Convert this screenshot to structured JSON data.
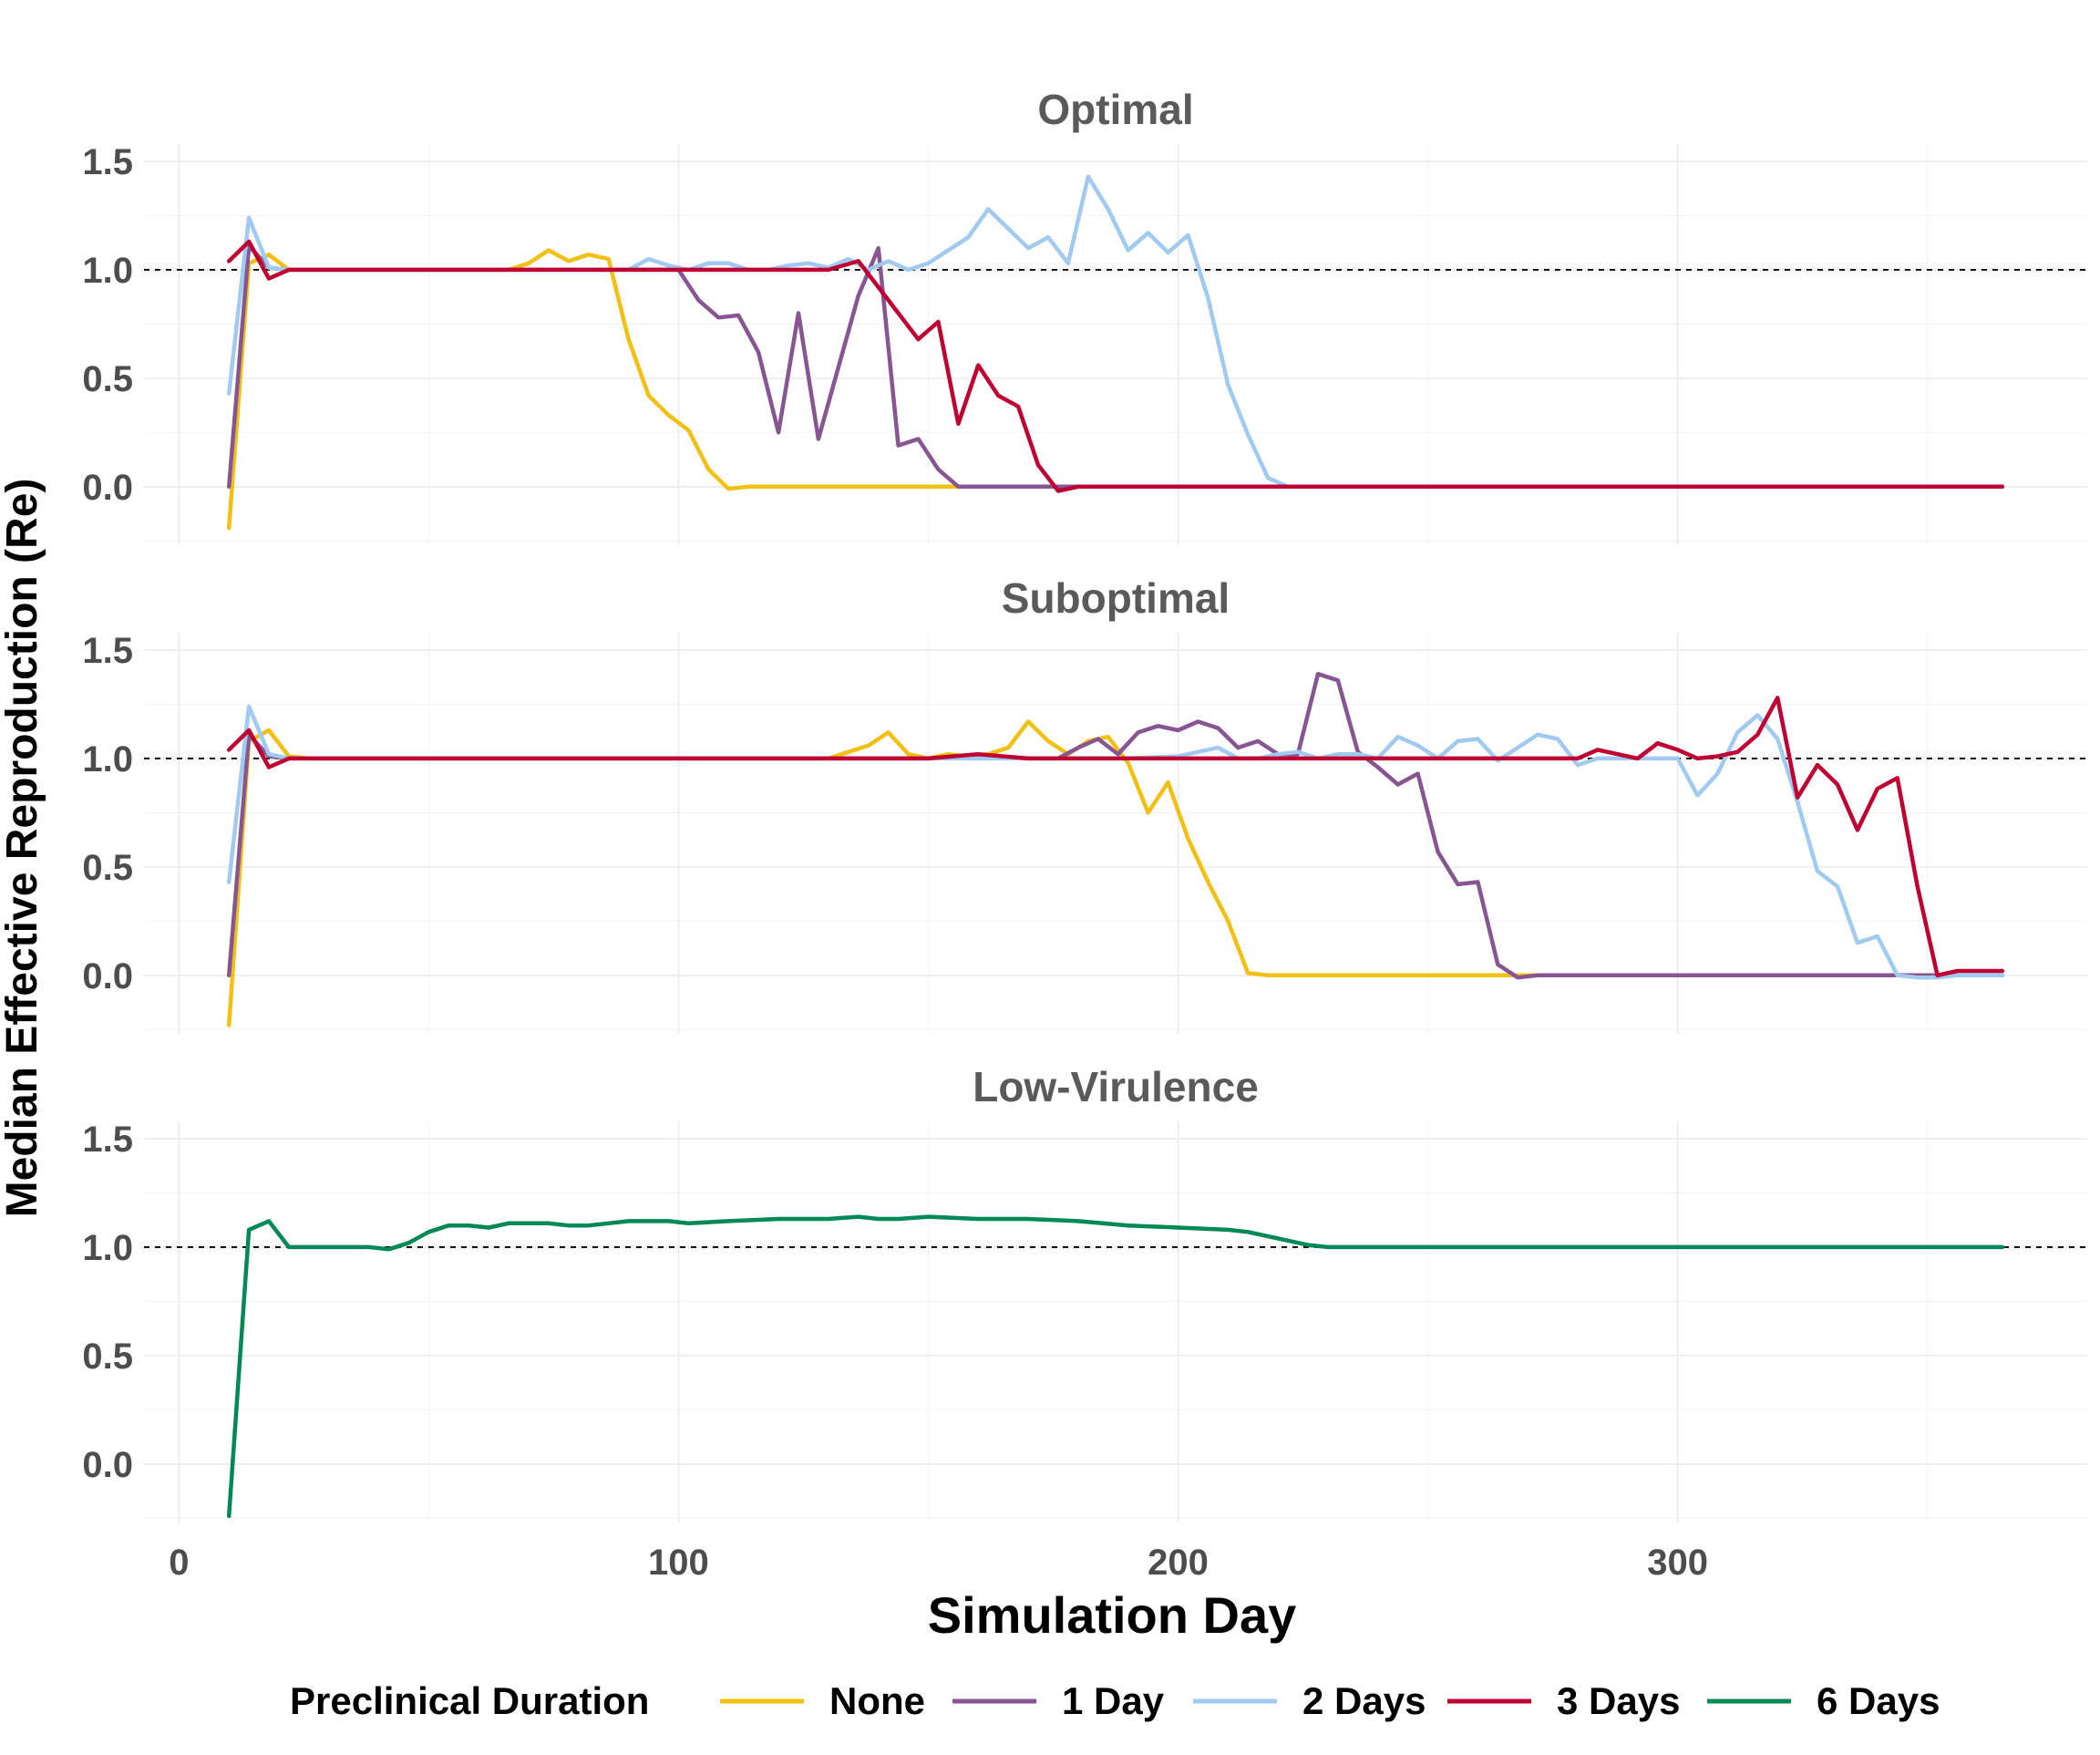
{
  "chart_data": {
    "type": "line",
    "xlabel": "Simulation Day",
    "ylabel": "Median Effective Reproduction (Re)",
    "xlim": [
      -7,
      382
    ],
    "ylim": [
      -0.27,
      1.58
    ],
    "x_ticks": [
      0,
      100,
      200,
      300
    ],
    "y_ticks": [
      0.0,
      0.5,
      1.0,
      1.5
    ],
    "x_tick_labels": [
      "0",
      "100",
      "200",
      "300"
    ],
    "y_tick_labels": [
      "0.0",
      "0.5",
      "1.0",
      "1.5"
    ],
    "reference_line": 1.0,
    "grid": true,
    "legend": {
      "title": "Preclinical Duration",
      "placement": "bottom",
      "entries": [
        {
          "label": "None",
          "color": "#F2C014"
        },
        {
          "label": "1 Day",
          "color": "#875692"
        },
        {
          "label": "2 Days",
          "color": "#A1CAF1"
        },
        {
          "label": "3 Days",
          "color": "#BE0032"
        },
        {
          "label": "6 Days",
          "color": "#008856"
        }
      ]
    },
    "panels": [
      {
        "title": "Optimal",
        "series": [
          {
            "name": "None",
            "color": "#F2C014",
            "x": [
              10,
              14,
              18,
              22,
              26,
              30,
              40,
              50,
              60,
              66,
              70,
              74,
              78,
              82,
              86,
              90,
              94,
              98,
              102,
              106,
              110,
              114,
              118,
              122,
              130,
              140,
              150,
              160,
              166,
              180,
              200,
              250,
              300,
              365
            ],
            "y": [
              -0.19,
              1.03,
              1.07,
              1.0,
              1.0,
              1.0,
              1.0,
              1.0,
              1.0,
              1.0,
              1.03,
              1.09,
              1.04,
              1.07,
              1.05,
              0.68,
              0.42,
              0.33,
              0.26,
              0.08,
              -0.01,
              0.0,
              0.0,
              0.0,
              0.0,
              0.0,
              0.0,
              0.0,
              0.0,
              0.0,
              0.0,
              0.0,
              0.0,
              0.0
            ]
          },
          {
            "name": "1 Day",
            "color": "#875692",
            "x": [
              10,
              14,
              18,
              22,
              26,
              40,
              60,
              80,
              96,
              100,
              104,
              108,
              112,
              116,
              120,
              124,
              128,
              132,
              136,
              140,
              144,
              148,
              152,
              156,
              160,
              164,
              170,
              180,
              200,
              250,
              300,
              365
            ],
            "y": [
              0.0,
              1.11,
              1.01,
              1.0,
              1.0,
              1.0,
              1.0,
              1.0,
              1.0,
              1.0,
              0.86,
              0.78,
              0.79,
              0.62,
              0.25,
              0.8,
              0.22,
              0.55,
              0.88,
              1.1,
              0.19,
              0.22,
              0.08,
              0.0,
              0.0,
              0.0,
              0.0,
              0.0,
              0.0,
              0.0,
              0.0,
              0.0
            ]
          },
          {
            "name": "2 Days",
            "color": "#A1CAF1",
            "x": [
              10,
              14,
              18,
              22,
              26,
              40,
              60,
              80,
              90,
              94,
              98,
              102,
              106,
              110,
              114,
              118,
              122,
              126,
              130,
              134,
              138,
              142,
              146,
              150,
              154,
              158,
              162,
              166,
              170,
              174,
              178,
              182,
              186,
              190,
              194,
              198,
              202,
              206,
              210,
              214,
              218,
              222,
              226,
              230,
              234,
              238,
              250,
              300,
              365
            ],
            "y": [
              0.43,
              1.24,
              1.01,
              1.0,
              1.0,
              1.0,
              1.0,
              1.0,
              1.0,
              1.05,
              1.02,
              1.0,
              1.03,
              1.03,
              1.0,
              1.0,
              1.02,
              1.03,
              1.01,
              1.05,
              1.0,
              1.04,
              1.0,
              1.03,
              1.09,
              1.15,
              1.28,
              1.19,
              1.1,
              1.15,
              1.03,
              1.43,
              1.28,
              1.09,
              1.17,
              1.08,
              1.16,
              0.87,
              0.47,
              0.24,
              0.04,
              0.0,
              0.0,
              0.0,
              0.0,
              0.0,
              0.0,
              0.0,
              0.0
            ]
          },
          {
            "name": "3 Days",
            "color": "#BE0032",
            "x": [
              10,
              14,
              18,
              22,
              26,
              40,
              60,
              80,
              100,
              120,
              130,
              136,
              140,
              144,
              148,
              152,
              156,
              160,
              164,
              168,
              172,
              176,
              180,
              184,
              190,
              200,
              250,
              300,
              365
            ],
            "y": [
              1.04,
              1.13,
              0.96,
              1.0,
              1.0,
              1.0,
              1.0,
              1.0,
              1.0,
              1.0,
              1.0,
              1.04,
              0.92,
              0.8,
              0.68,
              0.76,
              0.29,
              0.56,
              0.42,
              0.37,
              0.1,
              -0.02,
              0.0,
              0.0,
              0.0,
              0.0,
              0.0,
              0.0,
              0.0
            ]
          }
        ]
      },
      {
        "title": "Suboptimal",
        "series": [
          {
            "name": "None",
            "color": "#F2C014",
            "x": [
              10,
              14,
              18,
              22,
              26,
              40,
              60,
              80,
              100,
              120,
              130,
              134,
              138,
              142,
              146,
              150,
              154,
              158,
              162,
              166,
              170,
              174,
              178,
              182,
              186,
              190,
              194,
              198,
              202,
              206,
              210,
              214,
              218,
              222,
              226,
              230,
              250,
              280,
              300,
              365
            ],
            "y": [
              -0.23,
              1.08,
              1.13,
              1.01,
              1.0,
              1.0,
              1.0,
              1.0,
              1.0,
              1.0,
              1.0,
              1.03,
              1.06,
              1.12,
              1.02,
              1.0,
              1.02,
              1.01,
              1.02,
              1.05,
              1.17,
              1.08,
              1.02,
              1.08,
              1.1,
              0.98,
              0.75,
              0.89,
              0.63,
              0.43,
              0.25,
              0.01,
              0.0,
              0.0,
              0.0,
              0.0,
              0.0,
              0.0,
              0.0,
              0.0
            ]
          },
          {
            "name": "1 Day",
            "color": "#875692",
            "x": [
              10,
              14,
              18,
              22,
              26,
              40,
              60,
              80,
              100,
              120,
              140,
              150,
              160,
              170,
              176,
              180,
              184,
              188,
              192,
              196,
              200,
              204,
              208,
              212,
              216,
              220,
              224,
              228,
              232,
              236,
              240,
              244,
              248,
              252,
              256,
              260,
              264,
              268,
              272,
              276,
              280,
              290,
              300,
              365
            ],
            "y": [
              0.0,
              1.11,
              1.01,
              1.0,
              1.0,
              1.0,
              1.0,
              1.0,
              1.0,
              1.0,
              1.0,
              1.0,
              1.01,
              1.0,
              1.0,
              1.05,
              1.09,
              1.02,
              1.12,
              1.15,
              1.13,
              1.17,
              1.14,
              1.05,
              1.08,
              1.02,
              1.02,
              1.39,
              1.36,
              1.03,
              0.96,
              0.88,
              0.93,
              0.57,
              0.42,
              0.43,
              0.05,
              -0.01,
              0.0,
              0.0,
              0.0,
              0.0,
              0.0,
              0.0
            ]
          },
          {
            "name": "2 Days",
            "color": "#A1CAF1",
            "x": [
              10,
              14,
              18,
              22,
              26,
              40,
              60,
              80,
              100,
              120,
              140,
              150,
              160,
              170,
              180,
              190,
              200,
              204,
              208,
              212,
              216,
              220,
              224,
              228,
              232,
              236,
              240,
              244,
              248,
              252,
              256,
              260,
              264,
              268,
              272,
              276,
              280,
              284,
              288,
              292,
              296,
              300,
              304,
              308,
              312,
              316,
              320,
              324,
              328,
              332,
              336,
              340,
              344,
              348,
              352,
              356,
              360,
              365
            ],
            "y": [
              0.43,
              1.24,
              1.02,
              1.0,
              1.0,
              1.0,
              1.0,
              1.0,
              1.0,
              1.0,
              1.0,
              1.0,
              1.0,
              1.0,
              1.0,
              1.0,
              1.01,
              1.03,
              1.05,
              1.0,
              1.0,
              1.02,
              1.03,
              1.0,
              1.02,
              1.02,
              1.0,
              1.1,
              1.06,
              1.0,
              1.08,
              1.09,
              0.99,
              1.05,
              1.11,
              1.09,
              0.97,
              1.0,
              1.0,
              1.0,
              1.0,
              1.0,
              0.83,
              0.93,
              1.12,
              1.2,
              1.09,
              0.8,
              0.48,
              0.41,
              0.15,
              0.18,
              0.0,
              -0.01,
              -0.01,
              0.0,
              0.0,
              0.0
            ]
          },
          {
            "name": "3 Days",
            "color": "#BE0032",
            "x": [
              10,
              14,
              18,
              22,
              26,
              40,
              60,
              80,
              100,
              120,
              140,
              150,
              160,
              170,
              180,
              190,
              200,
              220,
              240,
              260,
              280,
              284,
              288,
              292,
              296,
              300,
              304,
              308,
              312,
              316,
              320,
              324,
              328,
              332,
              336,
              340,
              344,
              348,
              352,
              356,
              360,
              365
            ],
            "y": [
              1.04,
              1.13,
              0.96,
              1.0,
              1.0,
              1.0,
              1.0,
              1.0,
              1.0,
              1.0,
              1.0,
              1.0,
              1.02,
              1.0,
              1.0,
              1.0,
              1.0,
              1.0,
              1.0,
              1.0,
              1.0,
              1.04,
              1.02,
              1.0,
              1.07,
              1.04,
              1.0,
              1.01,
              1.03,
              1.11,
              1.28,
              0.82,
              0.97,
              0.88,
              0.67,
              0.86,
              0.91,
              0.41,
              0.0,
              0.02,
              0.02,
              0.02
            ]
          }
        ]
      },
      {
        "title": "Low-Virulence",
        "series": [
          {
            "name": "6 Days",
            "color": "#008856",
            "x": [
              10,
              14,
              18,
              22,
              26,
              30,
              34,
              38,
              42,
              46,
              50,
              54,
              58,
              62,
              66,
              70,
              74,
              78,
              82,
              86,
              90,
              94,
              98,
              102,
              110,
              120,
              130,
              136,
              140,
              144,
              150,
              160,
              170,
              180,
              190,
              200,
              210,
              214,
              218,
              222,
              226,
              230,
              240,
              260,
              300,
              365
            ],
            "y": [
              -0.24,
              1.08,
              1.12,
              1.0,
              1.0,
              1.0,
              1.0,
              1.0,
              0.99,
              1.02,
              1.07,
              1.1,
              1.1,
              1.09,
              1.11,
              1.11,
              1.11,
              1.1,
              1.1,
              1.11,
              1.12,
              1.12,
              1.12,
              1.11,
              1.12,
              1.13,
              1.13,
              1.14,
              1.13,
              1.13,
              1.14,
              1.13,
              1.13,
              1.12,
              1.1,
              1.09,
              1.08,
              1.07,
              1.05,
              1.03,
              1.01,
              1.0,
              1.0,
              1.0,
              1.0,
              1.0
            ]
          }
        ]
      }
    ]
  }
}
